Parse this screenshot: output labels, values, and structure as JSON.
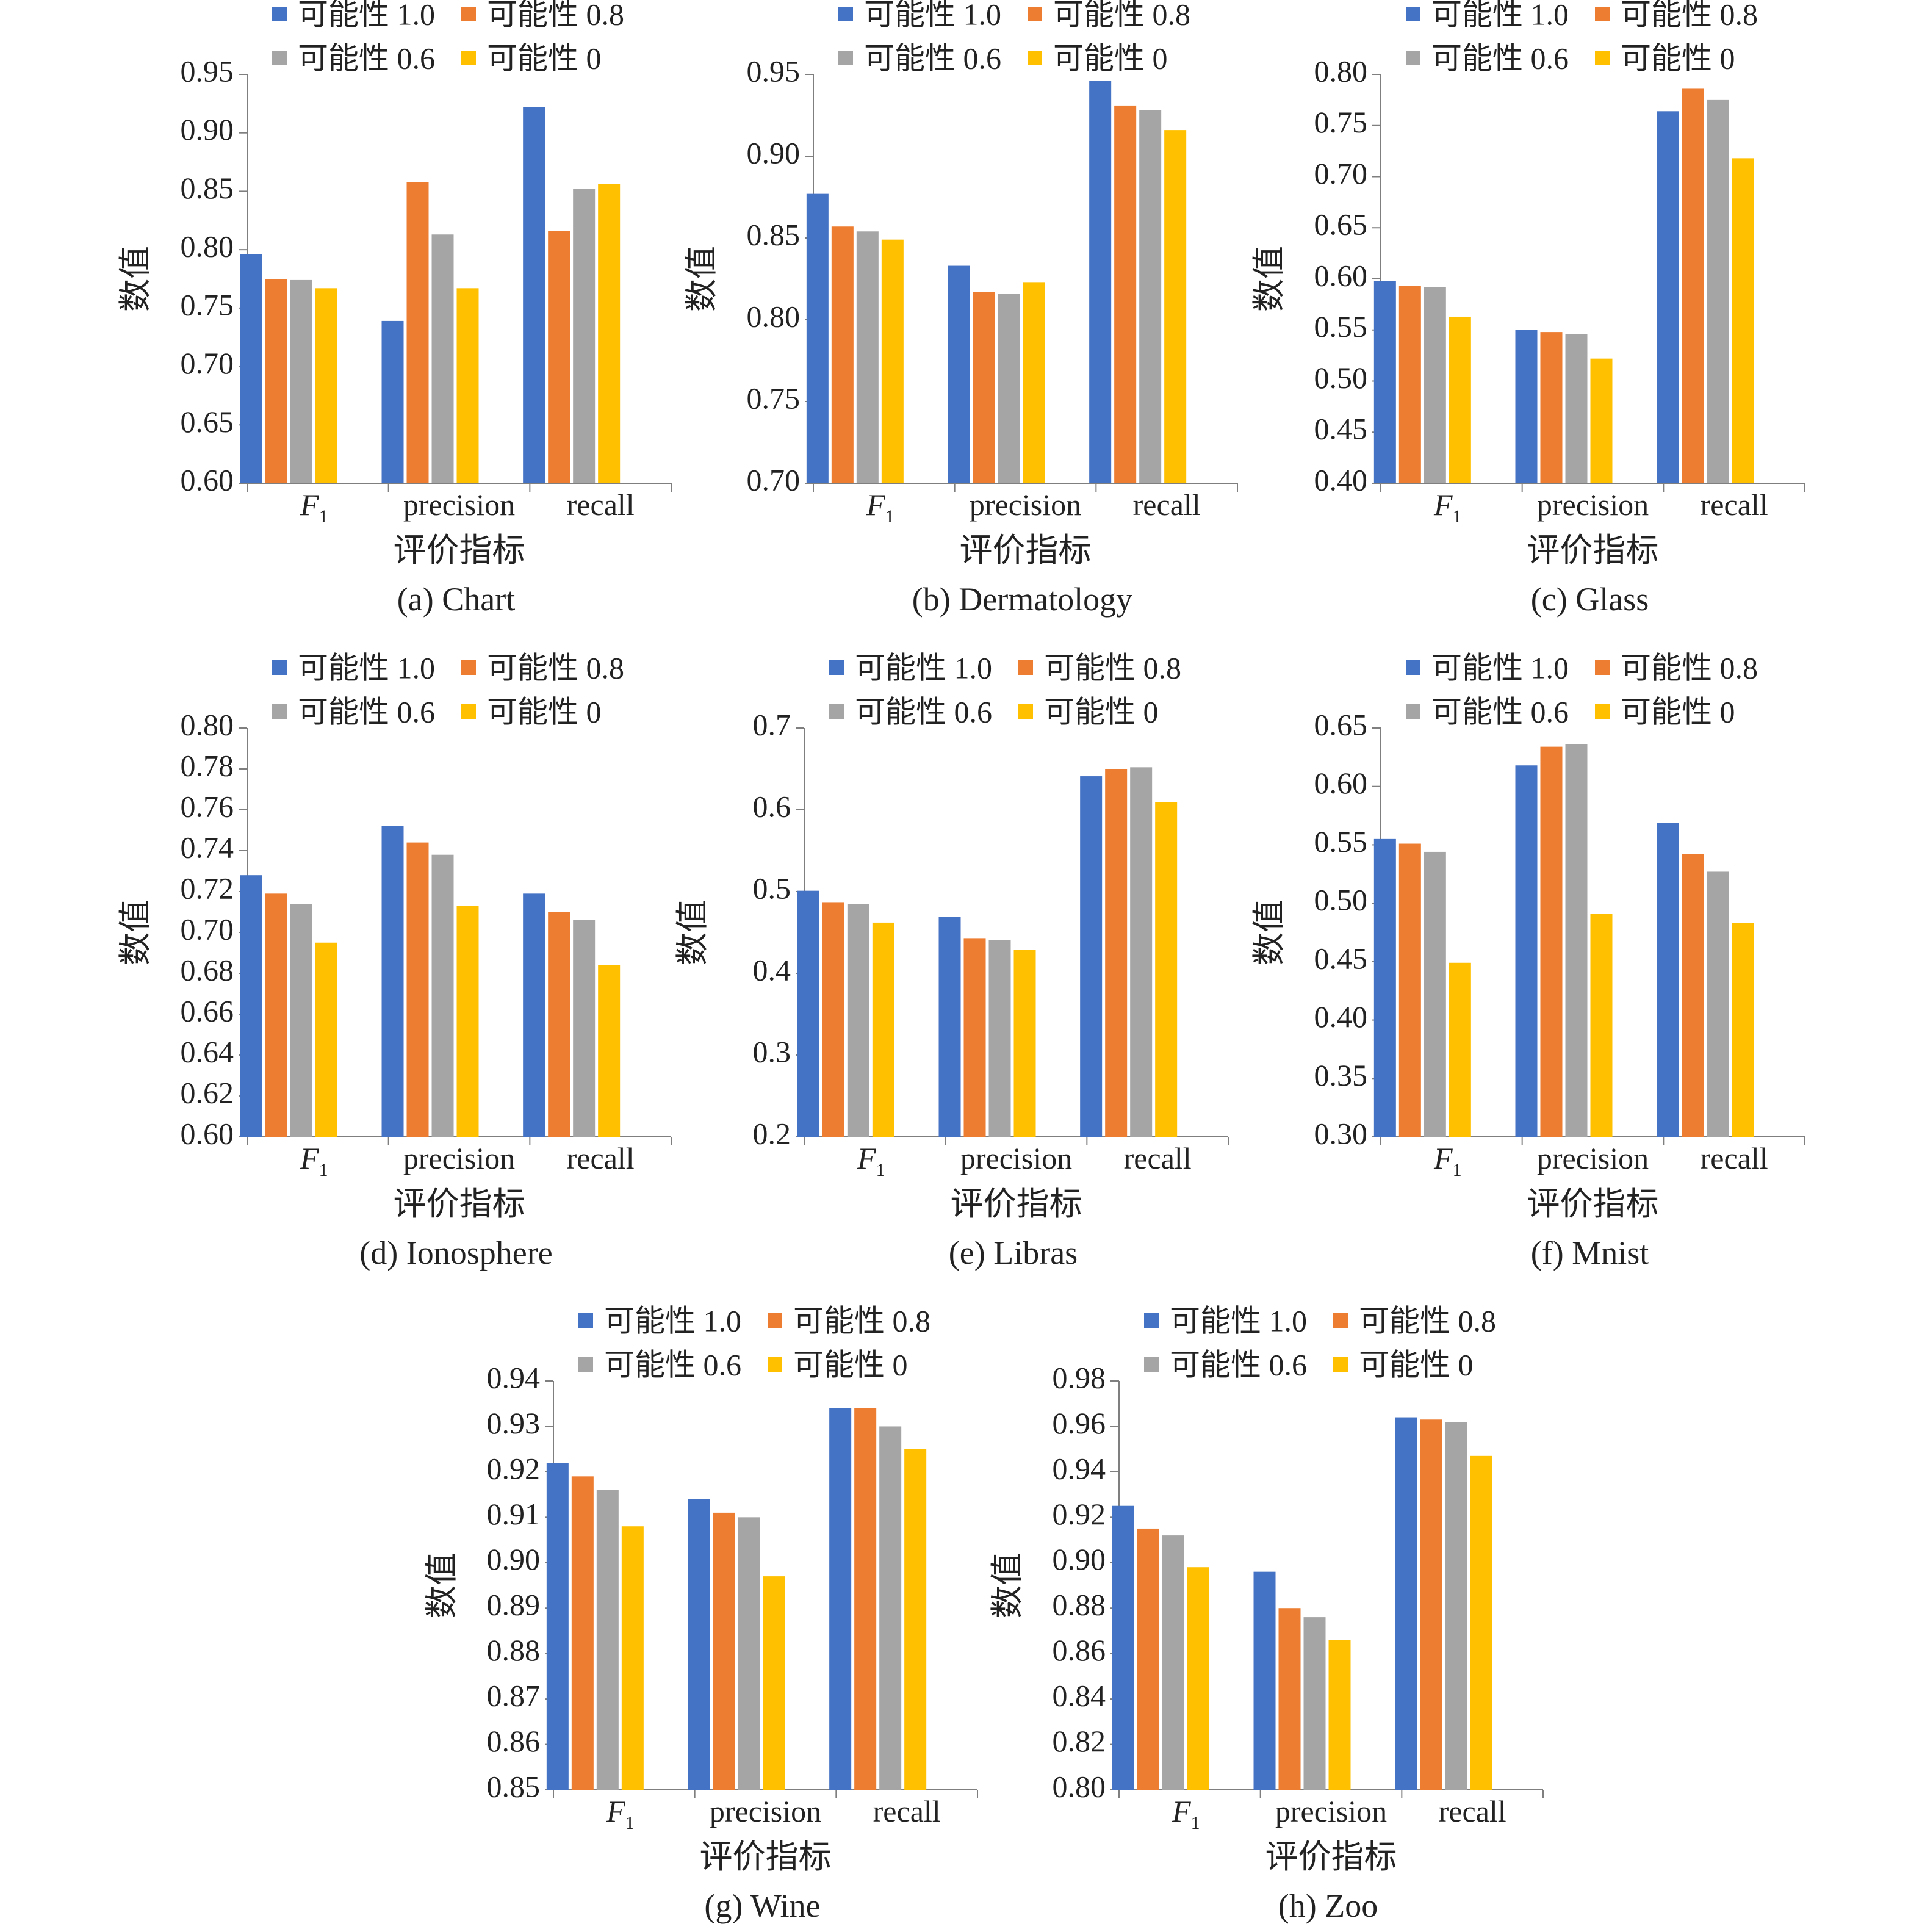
{
  "colors": {
    "s1": "#4472c4",
    "s2": "#ed7d31",
    "s3": "#a5a5a5",
    "s4": "#ffc000",
    "axis": "#7f7f7f"
  },
  "legend": [
    "可能性 1.0",
    "可能性 0.8",
    "可能性 0.6",
    "可能性 0"
  ],
  "chart_data": [
    {
      "type": "bar",
      "caption": "(a) Chart",
      "categories": [
        "F1",
        "precision",
        "recall"
      ],
      "ylabel": "数值",
      "xlabel": "评价指标",
      "ylim": [
        0.6,
        0.95
      ],
      "yticks": [
        "0.60",
        "0.65",
        "0.70",
        "0.75",
        "0.80",
        "0.85",
        "0.90",
        "0.95"
      ],
      "series": [
        {
          "name": "可能性 1.0",
          "values": [
            0.796,
            0.739,
            0.922
          ]
        },
        {
          "name": "可能性 0.8",
          "values": [
            0.775,
            0.858,
            0.816
          ]
        },
        {
          "name": "可能性 0.6",
          "values": [
            0.774,
            0.813,
            0.852
          ]
        },
        {
          "name": "可能性 0",
          "values": [
            0.767,
            0.767,
            0.856
          ]
        }
      ]
    },
    {
      "type": "bar",
      "caption": "(b) Dermatology",
      "categories": [
        "F1",
        "precision",
        "recall"
      ],
      "ylabel": "数值",
      "xlabel": "评价指标",
      "ylim": [
        0.7,
        0.95
      ],
      "yticks": [
        "0.70",
        "0.75",
        "0.80",
        "0.85",
        "0.90",
        "0.95"
      ],
      "series": [
        {
          "name": "可能性 1.0",
          "values": [
            0.877,
            0.833,
            0.946
          ]
        },
        {
          "name": "可能性 0.8",
          "values": [
            0.857,
            0.817,
            0.931
          ]
        },
        {
          "name": "可能性 0.6",
          "values": [
            0.854,
            0.816,
            0.928
          ]
        },
        {
          "name": "可能性 0",
          "values": [
            0.849,
            0.823,
            0.916
          ]
        }
      ]
    },
    {
      "type": "bar",
      "caption": "(c) Glass",
      "categories": [
        "F1",
        "precision",
        "recall"
      ],
      "ylabel": "数值",
      "xlabel": "评价指标",
      "ylim": [
        0.4,
        0.8
      ],
      "yticks": [
        "0.40",
        "0.45",
        "0.50",
        "0.55",
        "0.60",
        "0.65",
        "0.70",
        "0.75",
        "0.80"
      ],
      "series": [
        {
          "name": "可能性 1.0",
          "values": [
            0.598,
            0.55,
            0.764
          ]
        },
        {
          "name": "可能性 0.8",
          "values": [
            0.593,
            0.548,
            0.786
          ]
        },
        {
          "name": "可能性 0.6",
          "values": [
            0.592,
            0.546,
            0.775
          ]
        },
        {
          "name": "可能性 0",
          "values": [
            0.563,
            0.522,
            0.718
          ]
        }
      ]
    },
    {
      "type": "bar",
      "caption": "(d) Ionosphere",
      "categories": [
        "F1",
        "precision",
        "recall"
      ],
      "ylabel": "数值",
      "xlabel": "评价指标",
      "ylim": [
        0.6,
        0.8
      ],
      "yticks": [
        "0.60",
        "0.62",
        "0.64",
        "0.66",
        "0.68",
        "0.70",
        "0.72",
        "0.74",
        "0.76",
        "0.78",
        "0.80"
      ],
      "series": [
        {
          "name": "可能性 1.0",
          "values": [
            0.728,
            0.752,
            0.719
          ]
        },
        {
          "name": "可能性 0.8",
          "values": [
            0.719,
            0.744,
            0.71
          ]
        },
        {
          "name": "可能性 0.6",
          "values": [
            0.714,
            0.738,
            0.706
          ]
        },
        {
          "name": "可能性 0",
          "values": [
            0.695,
            0.713,
            0.684
          ]
        }
      ]
    },
    {
      "type": "bar",
      "caption": "(e) Libras",
      "categories": [
        "F1",
        "precision",
        "recall"
      ],
      "ylabel": "数值",
      "xlabel": "评价指标",
      "ylim": [
        0.2,
        0.7
      ],
      "yticks": [
        "0.2",
        "0.3",
        "0.4",
        "0.5",
        "0.6",
        "0.7"
      ],
      "series": [
        {
          "name": "可能性 1.0",
          "values": [
            0.501,
            0.469,
            0.641
          ]
        },
        {
          "name": "可能性 0.8",
          "values": [
            0.487,
            0.443,
            0.65
          ]
        },
        {
          "name": "可能性 0.6",
          "values": [
            0.485,
            0.441,
            0.652
          ]
        },
        {
          "name": "可能性 0",
          "values": [
            0.462,
            0.429,
            0.609
          ]
        }
      ]
    },
    {
      "type": "bar",
      "caption": "(f) Mnist",
      "categories": [
        "F1",
        "precision",
        "recall"
      ],
      "ylabel": "数值",
      "xlabel": "评价指标",
      "ylim": [
        0.3,
        0.65
      ],
      "yticks": [
        "0.30",
        "0.35",
        "0.40",
        "0.45",
        "0.50",
        "0.55",
        "0.60",
        "0.65"
      ],
      "series": [
        {
          "name": "可能性 1.0",
          "values": [
            0.555,
            0.618,
            0.569
          ]
        },
        {
          "name": "可能性 0.8",
          "values": [
            0.551,
            0.634,
            0.542
          ]
        },
        {
          "name": "可能性 0.6",
          "values": [
            0.544,
            0.636,
            0.527
          ]
        },
        {
          "name": "可能性 0",
          "values": [
            0.449,
            0.491,
            0.483
          ]
        }
      ]
    },
    {
      "type": "bar",
      "caption": "(g) Wine",
      "categories": [
        "F1",
        "precision",
        "recall"
      ],
      "ylabel": "数值",
      "xlabel": "评价指标",
      "ylim": [
        0.85,
        0.94
      ],
      "yticks": [
        "0.85",
        "0.86",
        "0.87",
        "0.88",
        "0.89",
        "0.90",
        "0.91",
        "0.92",
        "0.93",
        "0.94"
      ],
      "series": [
        {
          "name": "可能性 1.0",
          "values": [
            0.922,
            0.914,
            0.934
          ]
        },
        {
          "name": "可能性 0.8",
          "values": [
            0.919,
            0.911,
            0.934
          ]
        },
        {
          "name": "可能性 0.6",
          "values": [
            0.916,
            0.91,
            0.93
          ]
        },
        {
          "name": "可能性 0",
          "values": [
            0.908,
            0.897,
            0.925
          ]
        }
      ]
    },
    {
      "type": "bar",
      "caption": "(h) Zoo",
      "categories": [
        "F1",
        "precision",
        "recall"
      ],
      "ylabel": "数值",
      "xlabel": "评价指标",
      "ylim": [
        0.8,
        0.98
      ],
      "yticks": [
        "0.80",
        "0.82",
        "0.84",
        "0.86",
        "0.88",
        "0.90",
        "0.92",
        "0.94",
        "0.96",
        "0.98"
      ],
      "series": [
        {
          "name": "可能性 1.0",
          "values": [
            0.925,
            0.896,
            0.964
          ]
        },
        {
          "name": "可能性 0.8",
          "values": [
            0.915,
            0.88,
            0.963
          ]
        },
        {
          "name": "可能性 0.6",
          "values": [
            0.912,
            0.876,
            0.962
          ]
        },
        {
          "name": "可能性 0",
          "values": [
            0.898,
            0.866,
            0.947
          ]
        }
      ]
    }
  ]
}
